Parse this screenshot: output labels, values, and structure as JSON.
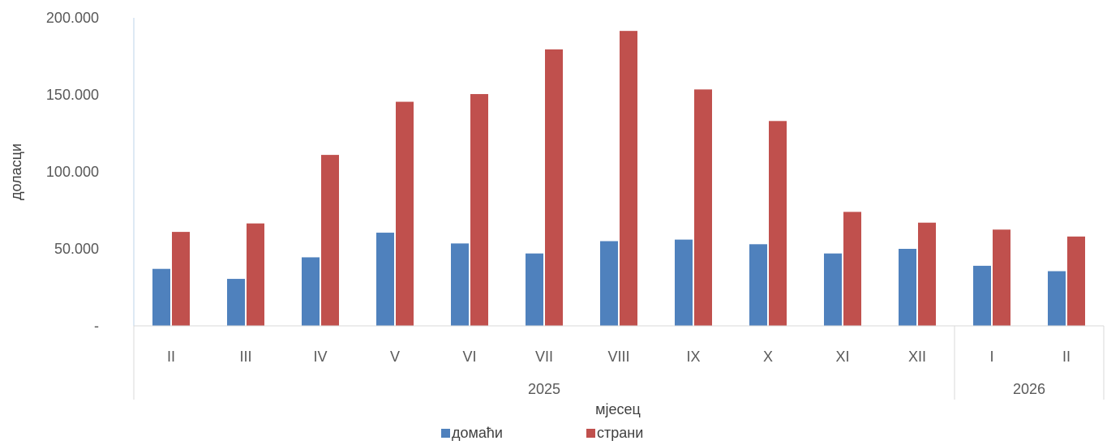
{
  "chart_data": {
    "type": "bar",
    "title": "",
    "xlabel": "мјесец",
    "ylabel": "доласци",
    "ylim": [
      0,
      200000
    ],
    "yticks": [
      0,
      50000,
      100000,
      150000,
      200000
    ],
    "ytick_labels": [
      "-",
      "50.000",
      "100.000",
      "150.000",
      "200.000"
    ],
    "grid": false,
    "legend_position": "bottom",
    "categories": [
      "II",
      "III",
      "IV",
      "V",
      "VI",
      "VII",
      "VIII",
      "IX",
      "X",
      "XI",
      "XII",
      "I",
      "II"
    ],
    "year_groups": [
      {
        "label": "2025",
        "count": 11
      },
      {
        "label": "2026",
        "count": 2
      }
    ],
    "series": [
      {
        "name": "домаћи",
        "color": "#4F81BD",
        "values": [
          37000,
          30500,
          44500,
          60500,
          53500,
          47000,
          55000,
          56000,
          53000,
          47000,
          50000,
          39000,
          35500
        ]
      },
      {
        "name": "страни",
        "color": "#C0504D",
        "values": [
          61000,
          66500,
          111000,
          145500,
          150500,
          179500,
          191500,
          153500,
          133000,
          74000,
          67000,
          62500,
          58000
        ]
      }
    ]
  }
}
